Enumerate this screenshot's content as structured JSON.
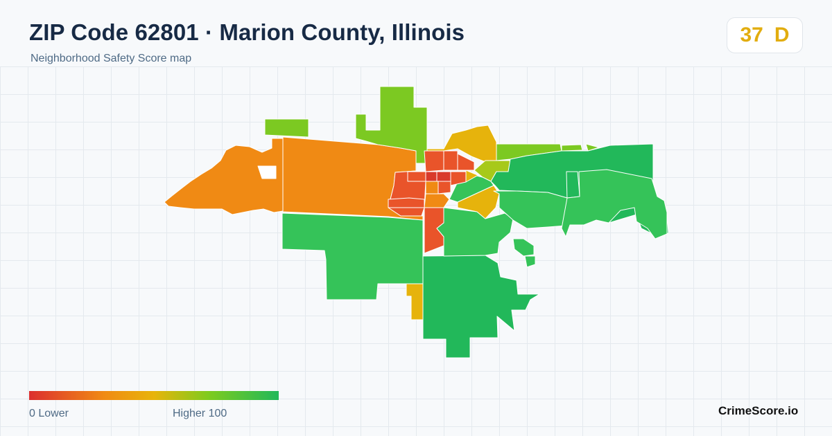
{
  "header": {
    "title": "ZIP Code 62801 · Marion County, Illinois",
    "subtitle": "Neighborhood Safety Score map"
  },
  "score": {
    "value": "37",
    "grade": "D",
    "color": "#e2ad0f"
  },
  "legend": {
    "min_label": "0  Lower",
    "max_label": "Higher  100",
    "min_value": 0,
    "max_value": 100,
    "colors": [
      "#dc2f2f",
      "#f08a14",
      "#e8b40a",
      "#7ecb1e",
      "#22b85a"
    ]
  },
  "brand": "CrimeScore.io",
  "map": {
    "region_colors": {
      "lowest": "#d93a2b",
      "low": "#e9542a",
      "low_mid": "#f08a14",
      "mid": "#e6b30c",
      "mid_high": "#a7c91a",
      "high_low": "#7cc922",
      "high": "#35c359",
      "highest": "#22b85a"
    }
  }
}
